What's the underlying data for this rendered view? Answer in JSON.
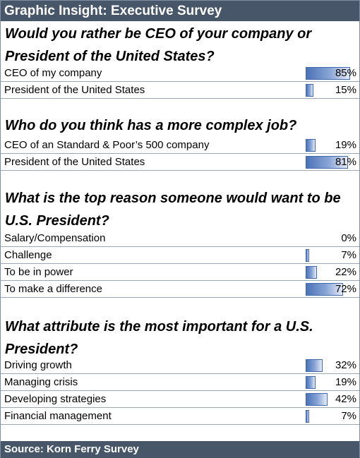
{
  "header": {
    "title": "Graphic Insight: Executive Survey"
  },
  "footer": {
    "source": "Source:  Korn Ferry Survey"
  },
  "chart_data": [
    {
      "type": "bar",
      "title": "Would you rather be CEO of your company or President of the United States?",
      "categories": [
        "CEO of my company",
        "President of the United States"
      ],
      "values": [
        85,
        15
      ],
      "value_labels": [
        "85%",
        "15%"
      ],
      "unit": "%"
    },
    {
      "type": "bar",
      "title": "Who do you think has a more complex job?",
      "categories": [
        "CEO of an Standard & Poor’s 500 company",
        "President of the United States"
      ],
      "values": [
        19,
        81
      ],
      "value_labels": [
        "19%",
        "81%"
      ],
      "unit": "%"
    },
    {
      "type": "bar",
      "title": "What is the top reason someone would want to be U.S. President?",
      "categories": [
        "Salary/Compensation",
        "Challenge",
        "To be in power",
        "To make a difference"
      ],
      "values": [
        0,
        7,
        22,
        72
      ],
      "value_labels": [
        "0%",
        "7%",
        "22%",
        "72%"
      ],
      "unit": "%"
    },
    {
      "type": "bar",
      "title": "What attribute is the most important for a U.S. President?",
      "categories": [
        "Driving growth",
        "Managing crisis",
        "Developing strategies",
        "Financial management"
      ],
      "values": [
        32,
        19,
        42,
        7
      ],
      "value_labels": [
        "32%",
        "19%",
        "42%",
        "7%"
      ],
      "unit": "%"
    }
  ]
}
